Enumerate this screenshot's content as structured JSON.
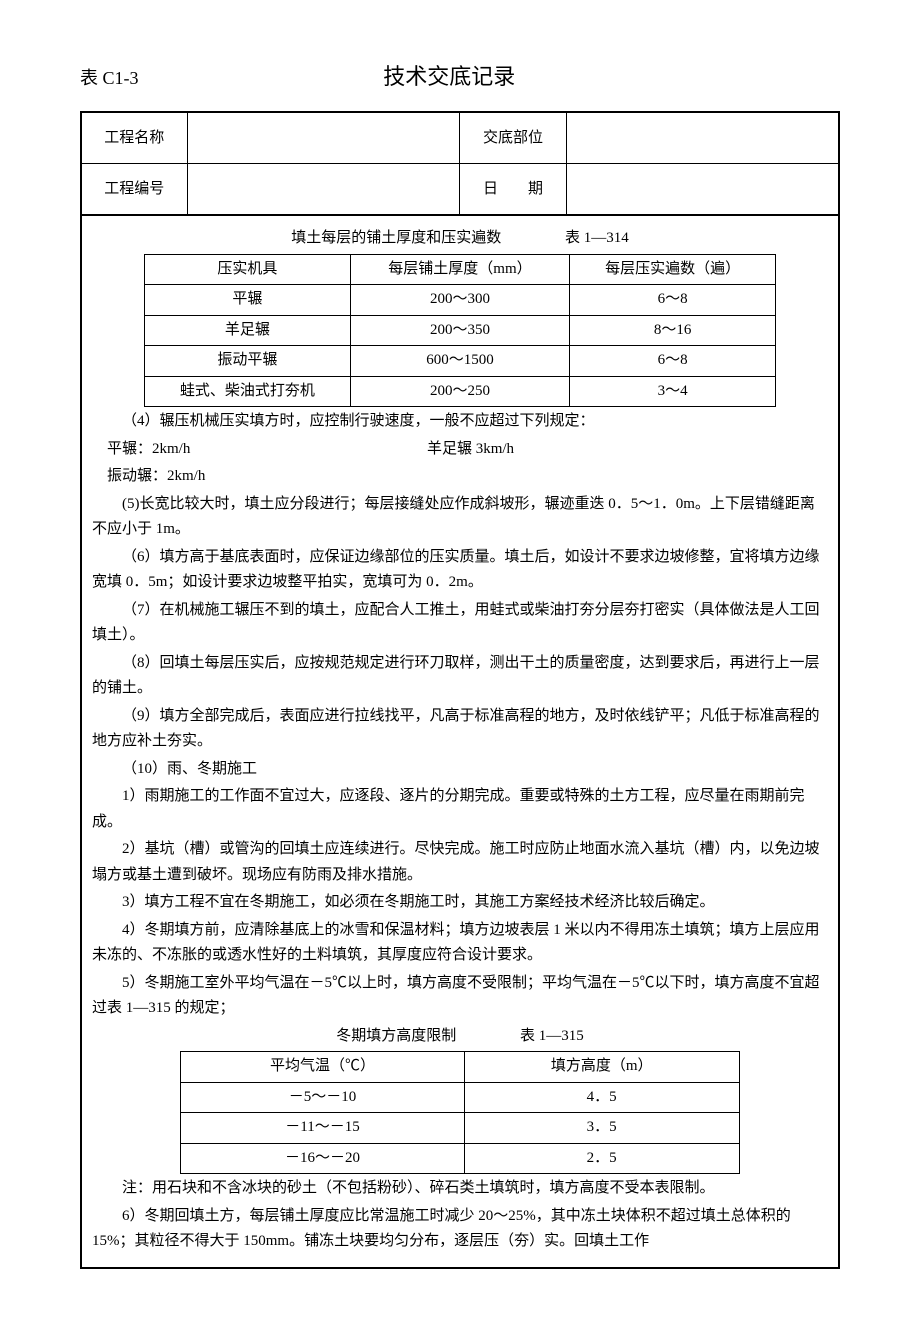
{
  "heading": {
    "code": "表 C1-3",
    "title": "技术交底记录"
  },
  "header": {
    "projNameLabel": "工程名称",
    "projNameValue": "",
    "partLabel": "交底部位",
    "partValue": "",
    "projNoLabel": "工程编号",
    "projNoValue": "",
    "dateLabel": "日　　期",
    "dateValue": ""
  },
  "table314": {
    "title": "填土每层的铺土厚度和压实遍数",
    "tableNo": "表 1—314",
    "cols": [
      "压实机具",
      "每层铺土厚度（mm）",
      "每层压实遍数（遍）"
    ],
    "rows": [
      [
        "平辗",
        "200～300",
        "6～8"
      ],
      [
        "羊足辗",
        "200～350",
        "8～16"
      ],
      [
        "振动平辗",
        "600～1500",
        "6～8"
      ],
      [
        "蛙式、柴油式打夯机",
        "200～250",
        "3～4"
      ]
    ]
  },
  "p4": "（4）辗压机械压实填方时，应控制行驶速度，一般不应超过下列规定：",
  "speeds": {
    "flat": "平辗：2km/h",
    "sheep": "羊足辗 3km/h",
    "vib": "振动辗：2km/h"
  },
  "p5": "(5)长宽比较大时，填土应分段进行；每层接缝处应作成斜坡形，辗迹重迭 0．5～1．0m。上下层错缝距离不应小于 1m。",
  "p6": "（6）填方高于基底表面时，应保证边缘部位的压实质量。填土后，如设计不要求边坡修整，宜将填方边缘宽填 0．5m；如设计要求边坡整平拍实，宽填可为 0．2m。",
  "p7": "（7）在机械施工辗压不到的填土，应配合人工推土，用蛙式或柴油打夯分层夯打密实（具体做法是人工回填土）。",
  "p8": "（8）回填土每层压实后，应按规范规定进行环刀取样，测出干土的质量密度，达到要求后，再进行上一层的铺土。",
  "p9": "（9）填方全部完成后，表面应进行拉线找平，凡高于标准高程的地方，及时依线铲平；凡低于标准高程的地方应补土夯实。",
  "p10": "（10）雨、冬期施工",
  "p10_1": "1）雨期施工的工作面不宜过大，应逐段、逐片的分期完成。重要或特殊的土方工程，应尽量在雨期前完成。",
  "p10_2": "2）基坑（槽）或管沟的回填土应连续进行。尽快完成。施工时应防止地面水流入基坑（槽）内，以免边坡塌方或基土遭到破坏。现场应有防雨及排水措施。",
  "p10_3": "3）填方工程不宜在冬期施工，如必须在冬期施工时，其施工方案经技术经济比较后确定。",
  "p10_4": "4）冬期填方前，应清除基底上的冰雪和保温材料；填方边坡表层 1 米以内不得用冻土填筑；填方上层应用未冻的、不冻胀的或透水性好的土料填筑，其厚度应符合设计要求。",
  "p10_5": "5）冬期施工室外平均气温在－5℃以上时，填方高度不受限制；平均气温在－5℃以下时，填方高度不宜超过表 1—315 的规定；",
  "table315": {
    "title": "冬期填方高度限制",
    "tableNo": "表 1—315",
    "cols": [
      "平均气温（℃）",
      "填方高度（m）"
    ],
    "rows": [
      [
        "－5～－10",
        "4．5"
      ],
      [
        "－11～－15",
        "3．5"
      ],
      [
        "－16～－20",
        "2．5"
      ]
    ]
  },
  "note": "注：用石块和不含冰块的砂土（不包括粉砂）、碎石类土填筑时，填方高度不受本表限制。",
  "p10_6": "6）冬期回填土方，每层铺土厚度应比常温施工时减少 20～25%，其中冻土块体积不超过填土总体积的 15%；其粒径不得大于 150mm。铺冻土块要均匀分布，逐层压（夯）实。回填土工作"
}
